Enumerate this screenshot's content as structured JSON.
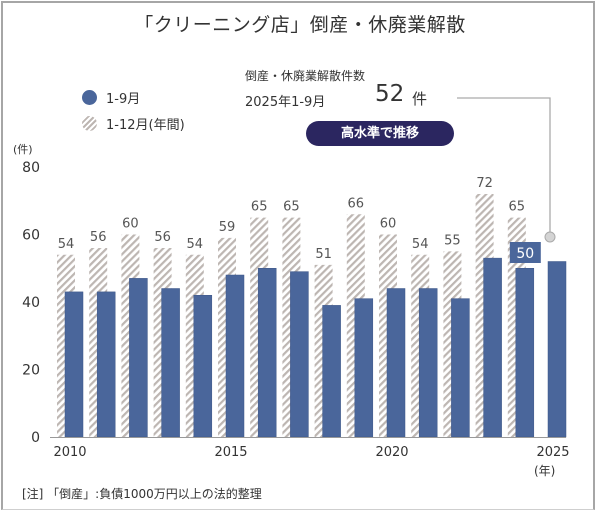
{
  "title": "「クリーニング店」倒産・休廃業解散",
  "legend": [
    {
      "label": "1-9月",
      "style": "solid",
      "color": "#4a669b"
    },
    {
      "label": "1-12月(年間)",
      "style": "hatched",
      "color": "#bdb6b2"
    }
  ],
  "info": {
    "label": "倒産・休廃業解散件数",
    "period": "2025年1-9月",
    "count": "52",
    "unit": "件",
    "badge": "高水準で推移"
  },
  "y_unit": "(件)",
  "x_unit": "(年)",
  "footnote": "[注] 「倒産」:負債1000万円以上の法的整理",
  "colors": {
    "jan_sep": "#4a669b",
    "annual_hatch": "#bdb6b2",
    "badge": "#2b2660",
    "text": "#333333"
  },
  "chart_data": {
    "type": "bar",
    "title": "「クリーニング店」倒産・休廃業解散",
    "xlabel": "(年)",
    "ylabel": "(件)",
    "ylim": [
      0,
      80
    ],
    "yticks": [
      0,
      20,
      40,
      60,
      80
    ],
    "xtick_labels": [
      "2010",
      "2015",
      "2020",
      "2025"
    ],
    "categories": [
      "2010",
      "2011",
      "2012",
      "2013",
      "2014",
      "2015",
      "2016",
      "2017",
      "2018",
      "2019",
      "2020",
      "2021",
      "2022",
      "2023",
      "2024",
      "2025"
    ],
    "series": [
      {
        "name": "1-12月(年間)",
        "style": "hatched",
        "values": [
          54,
          56,
          60,
          56,
          54,
          59,
          65,
          65,
          51,
          66,
          60,
          54,
          55,
          72,
          65,
          null
        ],
        "labels_shown": true
      },
      {
        "name": "1-9月",
        "style": "solid",
        "values": [
          43,
          43,
          47,
          44,
          42,
          48,
          50,
          49,
          39,
          41,
          44,
          44,
          41,
          53,
          50,
          52
        ]
      }
    ],
    "annotations": [
      {
        "category": "2024",
        "series": "1-9月",
        "text": "50",
        "style": "boxed"
      },
      {
        "category": "2025",
        "series": "1-9月",
        "text": "52件",
        "style": "callout"
      }
    ],
    "grid": false,
    "legend_position": "top-left"
  }
}
